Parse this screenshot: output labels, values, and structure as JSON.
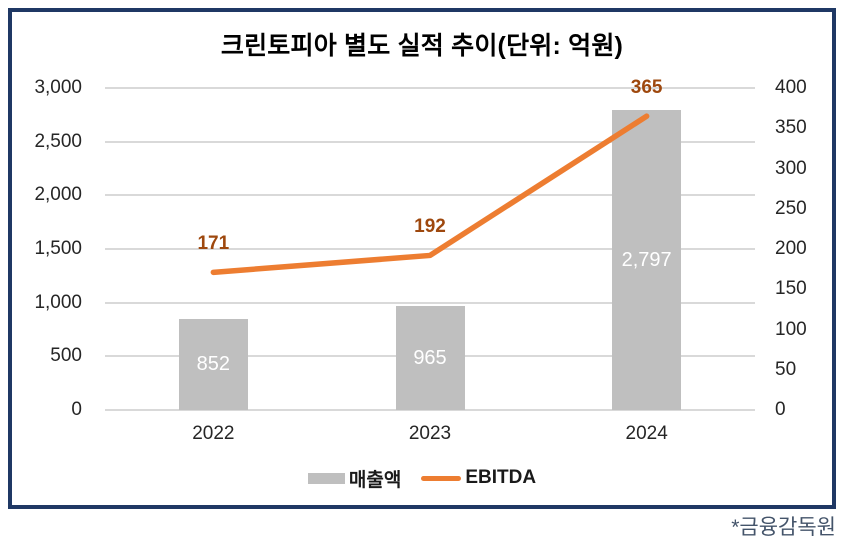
{
  "chart_data": {
    "type": "combo",
    "title": "크린토피아 별도 실적 추이(단위: 억원)",
    "footnote": "*금융감독원",
    "categories": [
      "2022",
      "2023",
      "2024"
    ],
    "series": [
      {
        "name": "매출액",
        "type": "bar",
        "axis": "left",
        "values": [
          852,
          965,
          2797
        ],
        "labels": [
          "852",
          "965",
          "2,797"
        ],
        "color": "#BFBFBF",
        "label_color": "#FFFFFF"
      },
      {
        "name": "EBITDA",
        "type": "line",
        "axis": "right",
        "values": [
          171,
          192,
          365
        ],
        "labels": [
          "171",
          "192",
          "365"
        ],
        "color": "#ED7D31",
        "label_color": "#9E480E"
      }
    ],
    "left_axis": {
      "min": 0,
      "max": 3000,
      "tick_labels": [
        "3,000",
        "2,500",
        "2,000",
        "1,500",
        "1,000",
        "500",
        "0"
      ]
    },
    "right_axis": {
      "min": 0,
      "max": 400,
      "tick_labels": [
        "400",
        "350",
        "300",
        "250",
        "200",
        "150",
        "100",
        "50",
        "0"
      ]
    },
    "grid": true,
    "legend_position": "bottom",
    "border_color": "#1F3864",
    "grid_color": "#D9D9D9"
  }
}
